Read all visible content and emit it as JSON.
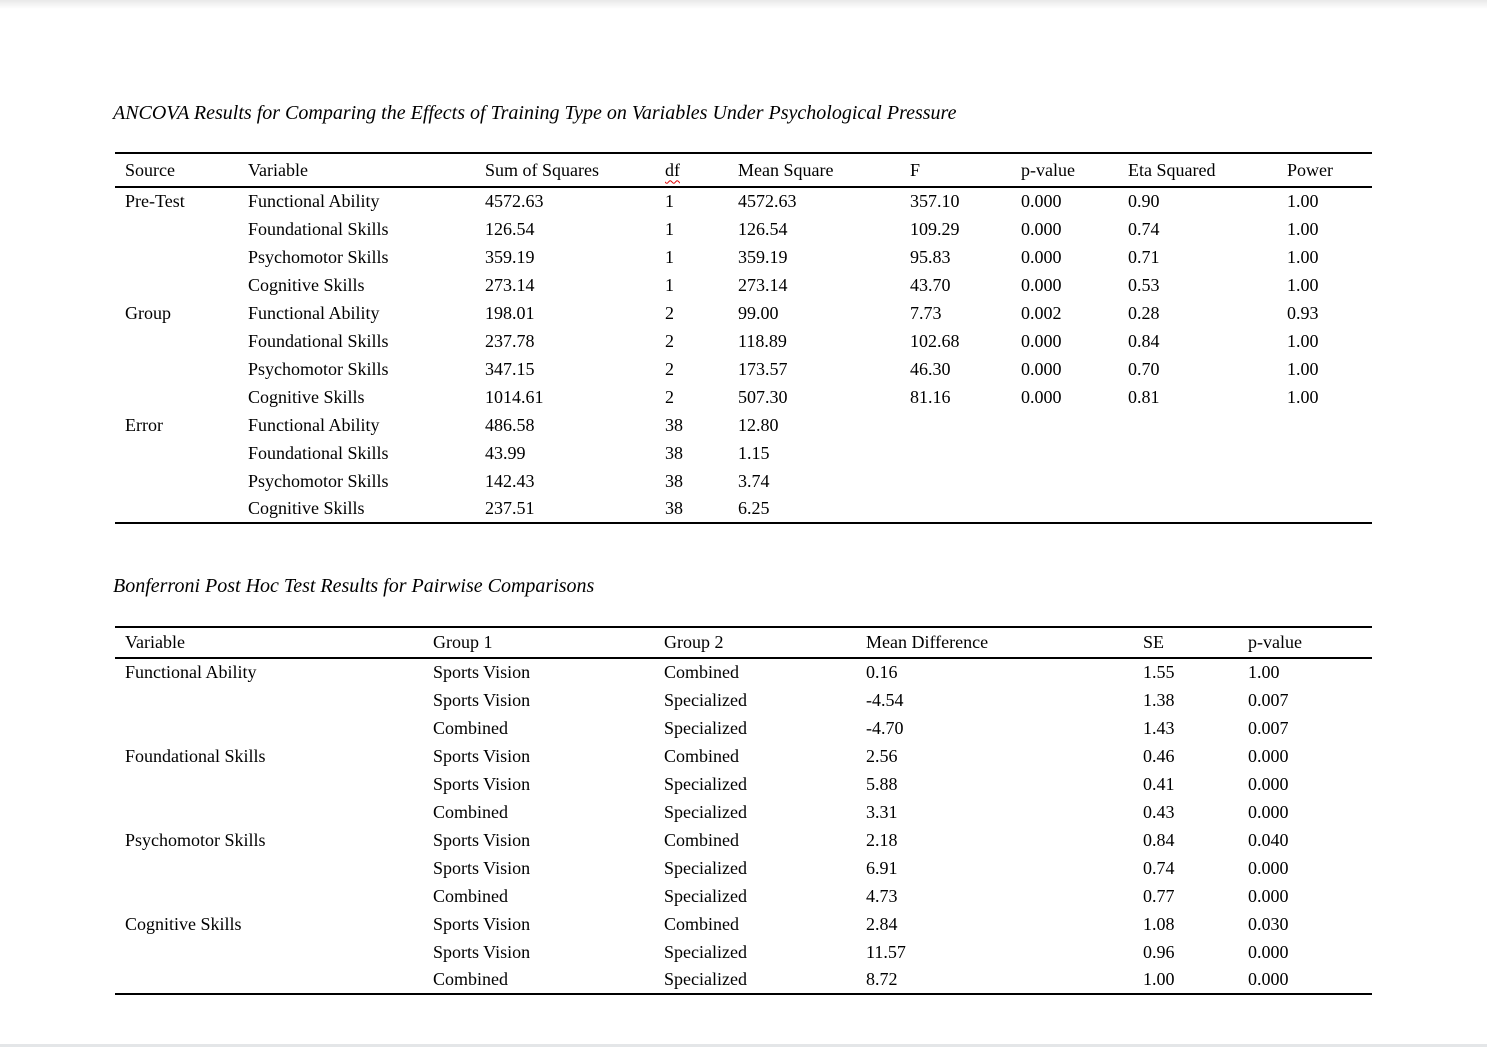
{
  "colors": {
    "spellcheck_underline": "#dd0000",
    "table_rule": "#000000"
  },
  "table1": {
    "title": "ANCOVA Results for Comparing the Effects of Training Type on Variables Under Psychological Pressure",
    "headers": [
      "Source",
      "Variable",
      "Sum of Squares",
      "df",
      "Mean Square",
      "F",
      "p-value",
      "Eta Squared",
      "Power"
    ],
    "misspelled_headers": [
      3
    ],
    "rows": [
      [
        "Pre-Test",
        "Functional Ability",
        "4572.63",
        "1",
        "4572.63",
        "357.10",
        "0.000",
        "0.90",
        "1.00"
      ],
      [
        "",
        "Foundational Skills",
        "126.54",
        "1",
        "126.54",
        "109.29",
        "0.000",
        "0.74",
        "1.00"
      ],
      [
        "",
        "Psychomotor Skills",
        "359.19",
        "1",
        "359.19",
        "95.83",
        "0.000",
        "0.71",
        "1.00"
      ],
      [
        "",
        "Cognitive Skills",
        "273.14",
        "1",
        "273.14",
        "43.70",
        "0.000",
        "0.53",
        "1.00"
      ],
      [
        "Group",
        "Functional Ability",
        "198.01",
        "2",
        "99.00",
        "7.73",
        "0.002",
        "0.28",
        "0.93"
      ],
      [
        "",
        "Foundational Skills",
        "237.78",
        "2",
        "118.89",
        "102.68",
        "0.000",
        "0.84",
        "1.00"
      ],
      [
        "",
        "Psychomotor Skills",
        "347.15",
        "2",
        "173.57",
        "46.30",
        "0.000",
        "0.70",
        "1.00"
      ],
      [
        "",
        "Cognitive Skills",
        "1014.61",
        "2",
        "507.30",
        "81.16",
        "0.000",
        "0.81",
        "1.00"
      ],
      [
        "Error",
        "Functional Ability",
        "486.58",
        "38",
        "12.80",
        "",
        "",
        "",
        ""
      ],
      [
        "",
        "Foundational Skills",
        "43.99",
        "38",
        "1.15",
        "",
        "",
        "",
        ""
      ],
      [
        "",
        "Psychomotor Skills",
        "142.43",
        "38",
        "3.74",
        "",
        "",
        "",
        ""
      ],
      [
        "",
        "Cognitive Skills",
        "237.51",
        "38",
        "6.25",
        "",
        "",
        "",
        ""
      ]
    ]
  },
  "table2": {
    "title": "Bonferroni Post Hoc Test Results for Pairwise Comparisons",
    "headers": [
      "Variable",
      "Group 1",
      "Group 2",
      "Mean Difference",
      "SE",
      "p-value"
    ],
    "misspelled_headers": [],
    "rows": [
      [
        "Functional Ability",
        "Sports Vision",
        "Combined",
        "0.16",
        "1.55",
        "1.00"
      ],
      [
        "",
        "Sports Vision",
        "Specialized",
        "-4.54",
        "1.38",
        "0.007"
      ],
      [
        "",
        "Combined",
        "Specialized",
        "-4.70",
        "1.43",
        "0.007"
      ],
      [
        "Foundational Skills",
        "Sports Vision",
        "Combined",
        "2.56",
        "0.46",
        "0.000"
      ],
      [
        "",
        "Sports Vision",
        "Specialized",
        "5.88",
        "0.41",
        "0.000"
      ],
      [
        "",
        "Combined",
        "Specialized",
        "3.31",
        "0.43",
        "0.000"
      ],
      [
        "Psychomotor Skills",
        "Sports Vision",
        "Combined",
        "2.18",
        "0.84",
        "0.040"
      ],
      [
        "",
        "Sports Vision",
        "Specialized",
        "6.91",
        "0.74",
        "0.000"
      ],
      [
        "",
        "Combined",
        "Specialized",
        "4.73",
        "0.77",
        "0.000"
      ],
      [
        "Cognitive Skills",
        "Sports Vision",
        "Combined",
        "2.84",
        "1.08",
        "0.030"
      ],
      [
        "",
        "Sports Vision",
        "Specialized",
        "11.57",
        "0.96",
        "0.000"
      ],
      [
        "",
        "Combined",
        "Specialized",
        "8.72",
        "1.00",
        "0.000"
      ]
    ]
  }
}
